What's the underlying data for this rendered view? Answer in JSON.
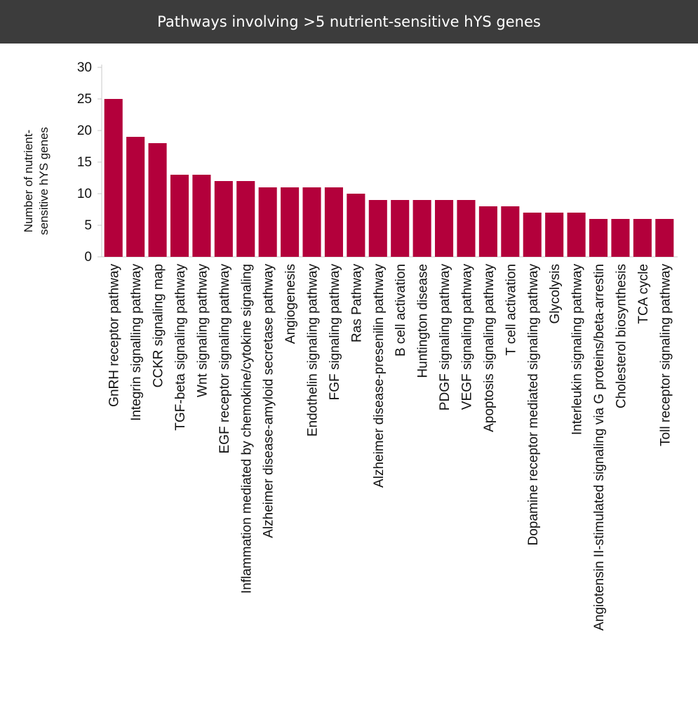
{
  "header": {
    "title": "Pathways involving >5 nutrient-sensitive hYS genes"
  },
  "chart_data": {
    "type": "bar",
    "title": "Pathways involving >5 nutrient-sensitive hYS genes",
    "ylabel_lines": [
      "Number of nutrient-",
      "sensitive hYS genes"
    ],
    "ylim": [
      0,
      30
    ],
    "yticks": [
      0,
      5,
      10,
      15,
      20,
      25,
      30
    ],
    "bar_color": "#b3003b",
    "grid": false,
    "categories": [
      "GnRH receptor pathway",
      "Integrin signalling pathway",
      "CCKR signaling map",
      "TGF-beta signaling pathway",
      "Wnt signaling pathway",
      "EGF receptor signaling pathway",
      "Inflammation mediated by chemokine/cytokine signaling",
      "Alzheimer disease-amyloid secretase pathway",
      "Angiogenesis",
      "Endothelin signaling pathway",
      "FGF signaling pathway",
      "Ras Pathway",
      "Alzheimer disease-presenilin pathway",
      "B cell activation",
      "Huntington disease",
      "PDGF signaling pathway",
      "VEGF signaling pathway",
      "Apoptosis signaling pathway",
      "T cell activation",
      "Dopamine receptor mediated signaling pathway",
      "Glycolysis",
      "Interleukin signaling pathway",
      "Angiotensin II-stimulated signaling via G proteins/beta-arrestin",
      "Cholesterol biosynthesis",
      "TCA cycle",
      "Toll receptor signaling pathway"
    ],
    "values": [
      25,
      19,
      18,
      13,
      13,
      12,
      12,
      11,
      11,
      11,
      11,
      10,
      9,
      9,
      9,
      9,
      9,
      8,
      8,
      7,
      7,
      7,
      6,
      6,
      6,
      6
    ]
  }
}
